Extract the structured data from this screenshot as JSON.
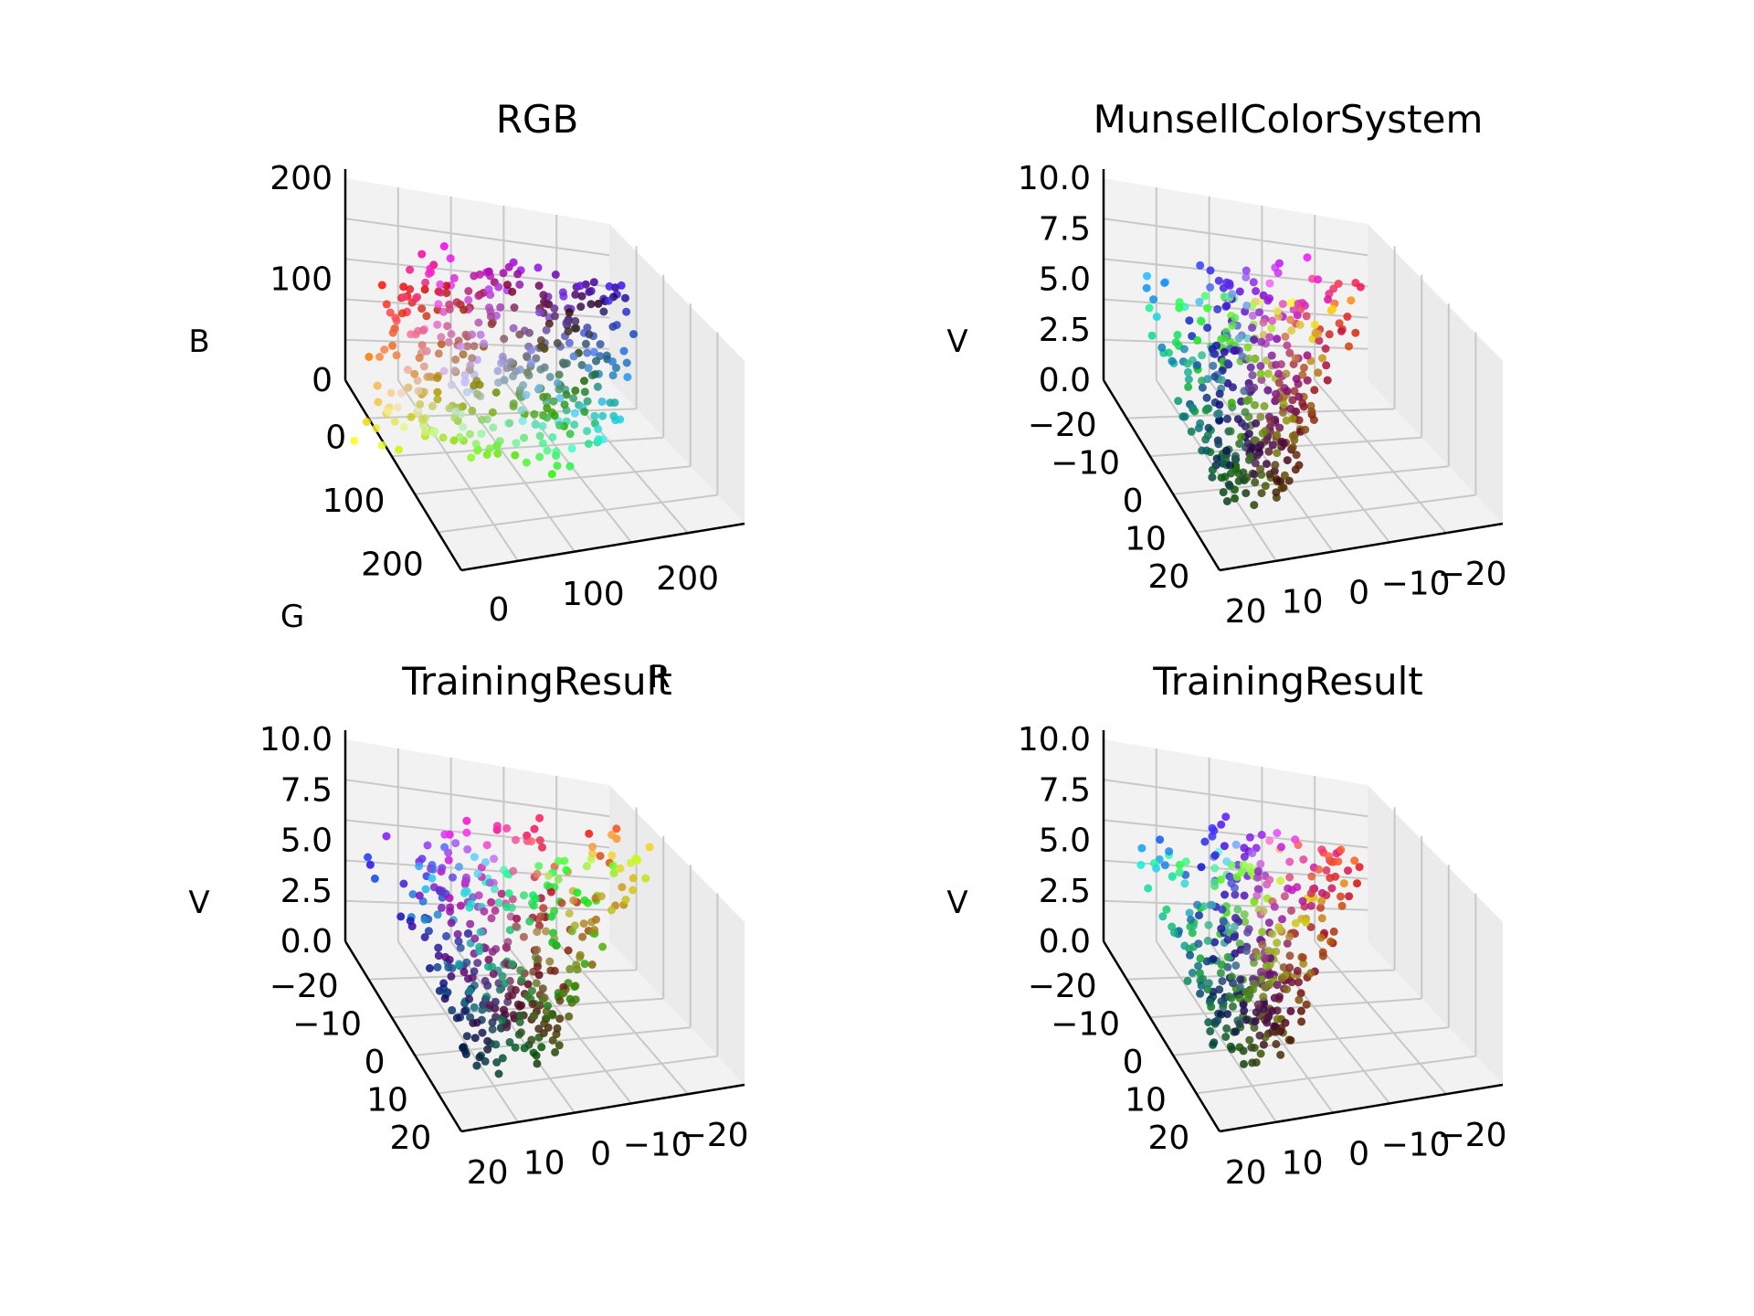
{
  "chart_data": [
    {
      "type": "scatter",
      "subtype": "3d",
      "title": "RGB",
      "xlabel": "R",
      "ylabel": "G",
      "zlabel": "B",
      "xlim": [
        0,
        255
      ],
      "ylim": [
        0,
        255
      ],
      "zlim": [
        0,
        255
      ],
      "x_ticks": [
        "0",
        "100",
        "200"
      ],
      "y_ticks": [
        "0",
        "100",
        "200"
      ],
      "z_ticks": [
        "0",
        "100",
        "200"
      ],
      "grid": true,
      "point_color_encoding": "rgb"
    },
    {
      "type": "scatter",
      "subtype": "3d",
      "title": "MunsellColorSystem",
      "xlabel": "",
      "ylabel": "",
      "zlabel": "V",
      "xlim": [
        -20,
        20
      ],
      "ylim": [
        -20,
        20
      ],
      "zlim": [
        0,
        10
      ],
      "x_ticks": [
        "20",
        "10",
        "0",
        "−10",
        "−20"
      ],
      "y_ticks": [
        "−20",
        "−10",
        "0",
        "10",
        "20"
      ],
      "z_ticks": [
        "0.0",
        "2.5",
        "5.0",
        "7.5",
        "10.0"
      ],
      "grid": true,
      "point_color_encoding": "rgb"
    },
    {
      "type": "scatter",
      "subtype": "3d",
      "title": "TrainingResult",
      "xlabel": "",
      "ylabel": "",
      "zlabel": "V",
      "xlim": [
        -20,
        20
      ],
      "ylim": [
        -20,
        20
      ],
      "zlim": [
        0,
        10
      ],
      "x_ticks": [
        "20",
        "10",
        "0",
        "−10",
        "−20"
      ],
      "y_ticks": [
        "−20",
        "−10",
        "0",
        "10",
        "20"
      ],
      "z_ticks": [
        "0.0",
        "2.5",
        "5.0",
        "7.5",
        "10.0"
      ],
      "grid": true,
      "point_color_encoding": "rgb"
    },
    {
      "type": "scatter",
      "subtype": "3d",
      "title": "TrainingResult",
      "xlabel": "",
      "ylabel": "",
      "zlabel": "V",
      "xlim": [
        -20,
        20
      ],
      "ylim": [
        -20,
        20
      ],
      "zlim": [
        0,
        10
      ],
      "x_ticks": [
        "20",
        "10",
        "0",
        "−10",
        "−20"
      ],
      "y_ticks": [
        "−20",
        "−10",
        "0",
        "10",
        "20"
      ],
      "z_ticks": [
        "0.0",
        "2.5",
        "5.0",
        "7.5",
        "10.0"
      ],
      "grid": true,
      "point_color_encoding": "rgb"
    }
  ],
  "colors": {
    "pane": "#f2f2f2",
    "pane_side": "#ebebeb",
    "grid": "#c8c8c8",
    "axis_line": "#000000"
  }
}
